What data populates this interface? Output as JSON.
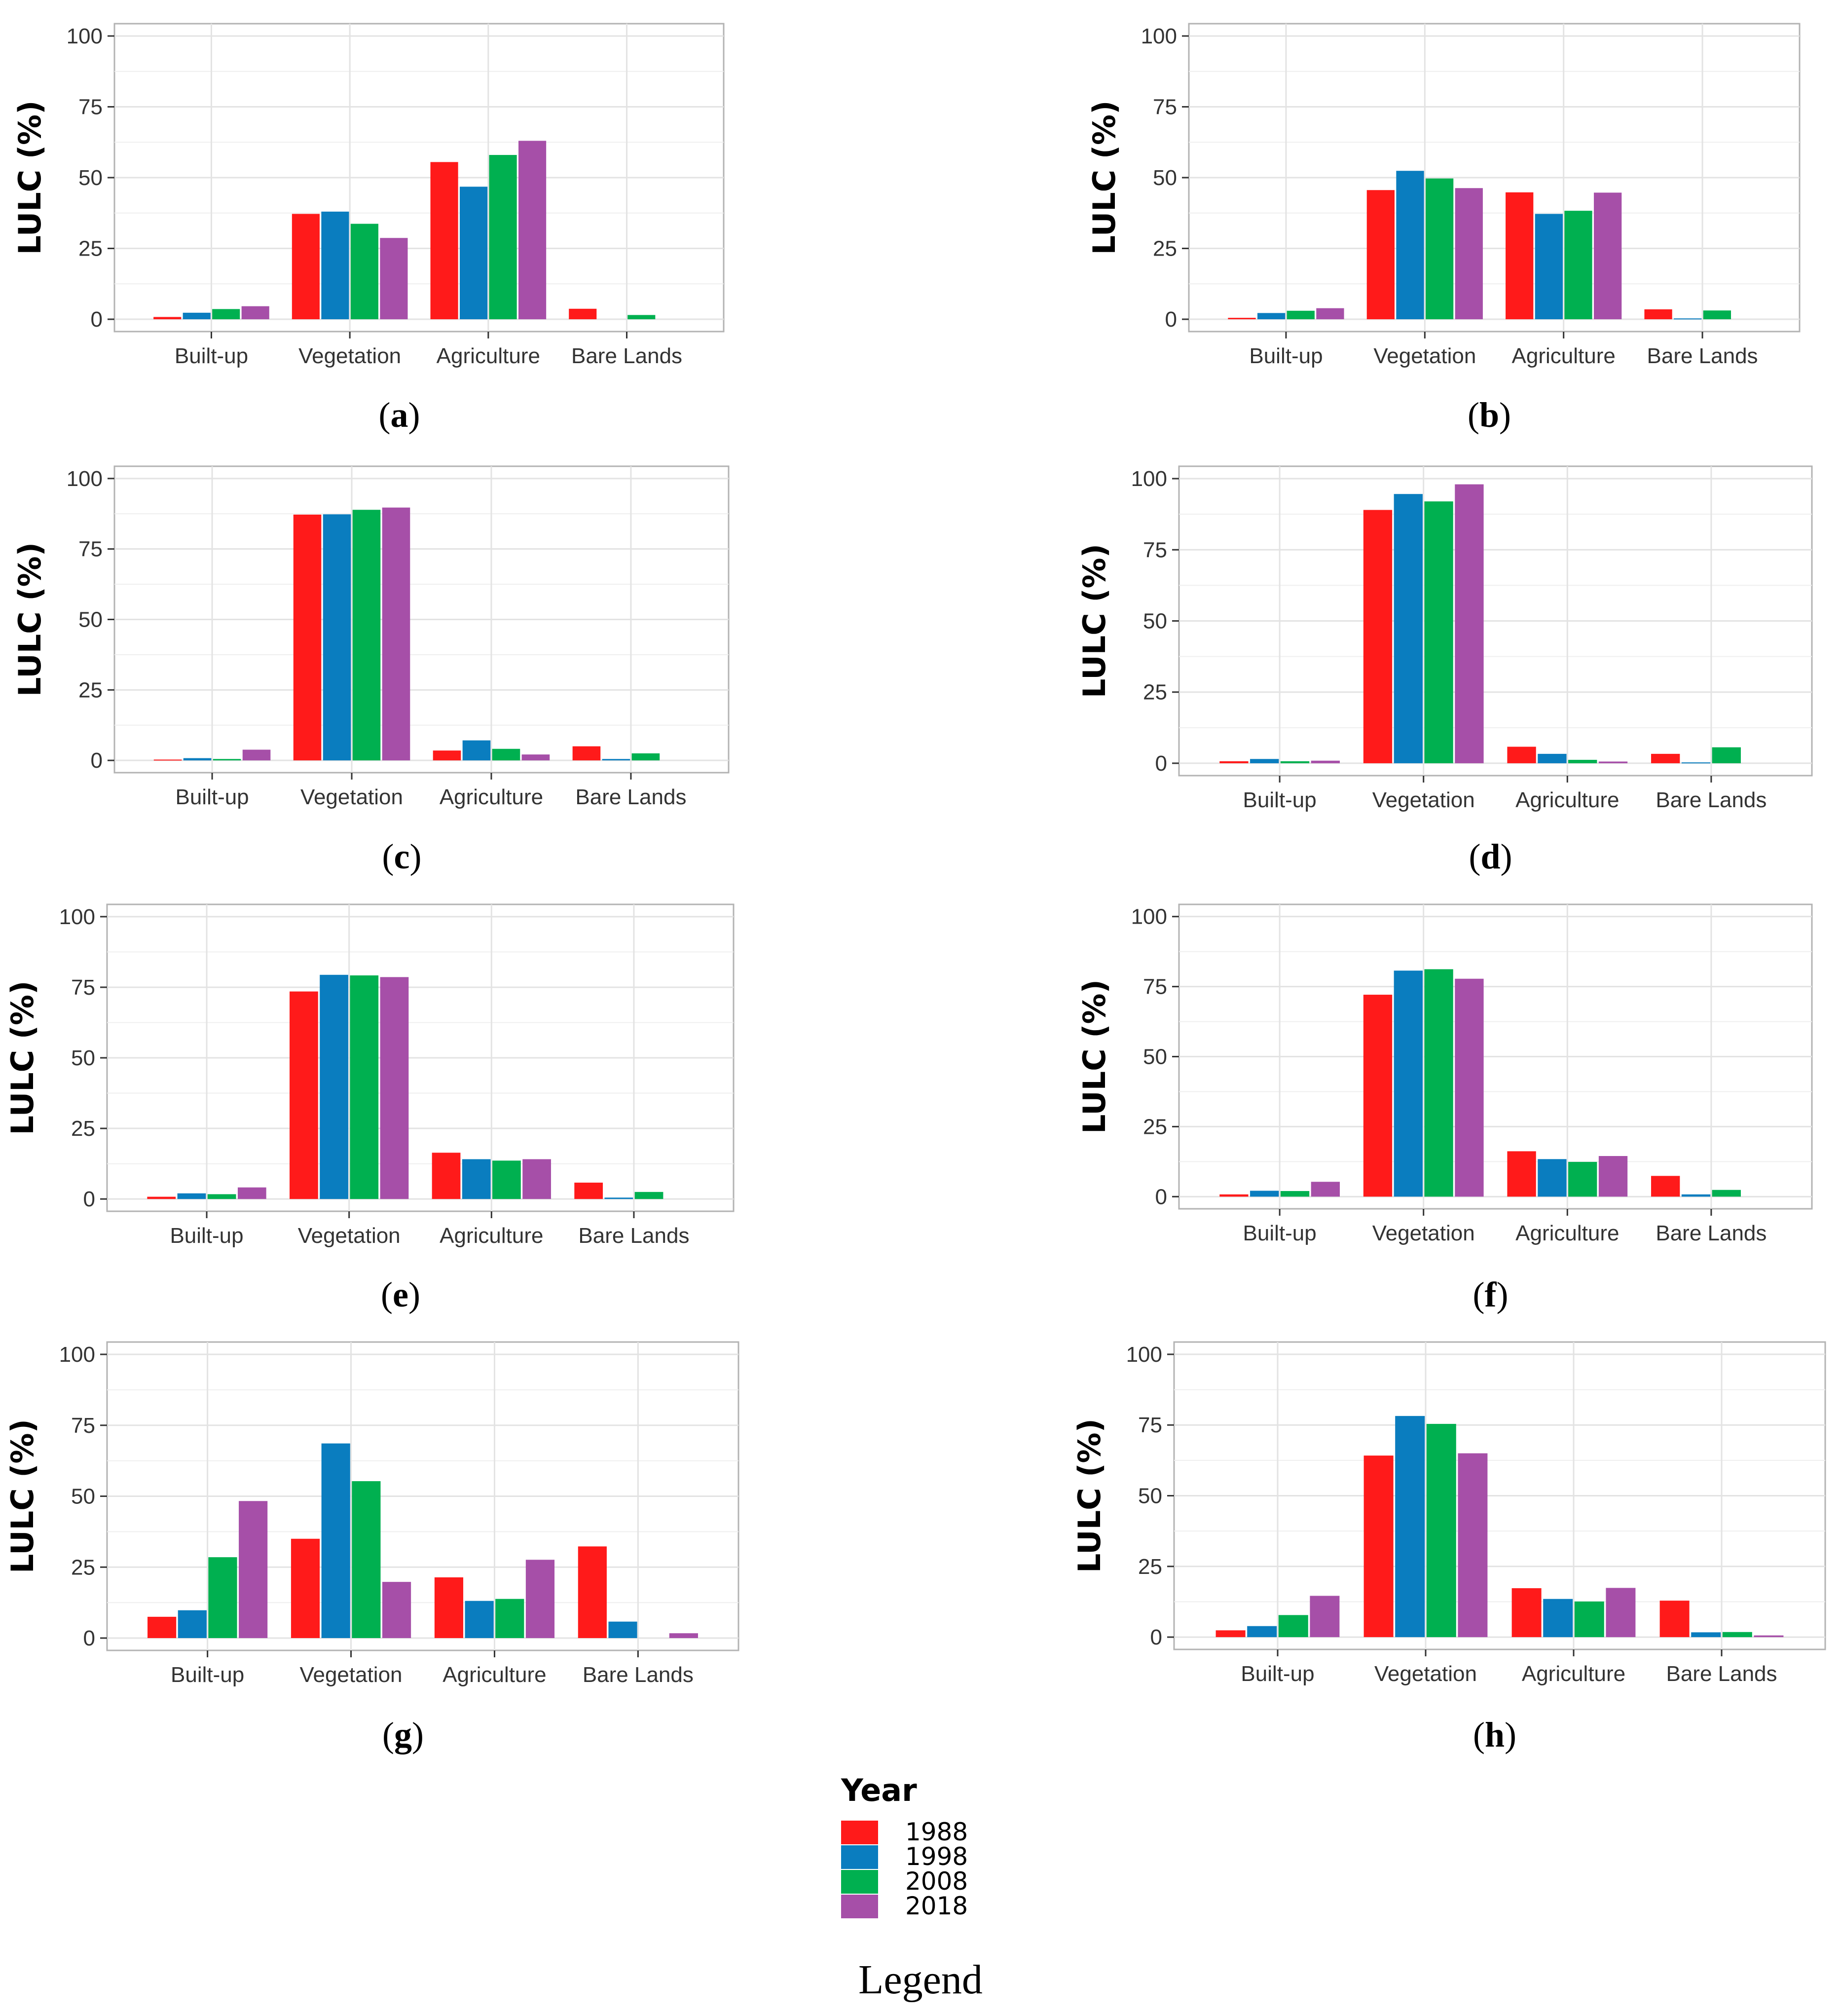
{
  "figure": {
    "legend": {
      "title": "Year",
      "caption": "Legend",
      "items": [
        {
          "label": "1988",
          "color": "#FF1A1A"
        },
        {
          "label": "1998",
          "color": "#0A7DBF"
        },
        {
          "label": "2008",
          "color": "#00B050"
        },
        {
          "label": "2018",
          "color": "#A64FA8"
        }
      ]
    }
  },
  "chart_data": [
    {
      "type": "bar",
      "panel": "a",
      "categories": [
        "Built-up",
        "Vegetation",
        "Agriculture",
        "Bare Lands"
      ],
      "ylabel": "LULC (%)",
      "ylim": [
        0,
        100
      ],
      "yticks": [
        0,
        25,
        50,
        75,
        100
      ],
      "series": [
        {
          "name": "1988",
          "values": [
            0.8,
            37.2,
            55.5,
            3.7
          ]
        },
        {
          "name": "1998",
          "values": [
            2.3,
            38.0,
            46.8,
            0
          ]
        },
        {
          "name": "2008",
          "values": [
            3.6,
            33.7,
            58.0,
            1.5
          ]
        },
        {
          "name": "2018",
          "values": [
            4.6,
            28.7,
            63.0,
            0
          ]
        }
      ]
    },
    {
      "type": "bar",
      "panel": "b",
      "categories": [
        "Built-up",
        "Vegetation",
        "Agriculture",
        "Bare Lands"
      ],
      "ylabel": "LULC (%)",
      "ylim": [
        0,
        100
      ],
      "yticks": [
        0,
        25,
        50,
        75,
        100
      ],
      "series": [
        {
          "name": "1988",
          "values": [
            0.5,
            45.6,
            44.8,
            3.5
          ]
        },
        {
          "name": "1998",
          "values": [
            2.2,
            52.4,
            37.2,
            0.3
          ]
        },
        {
          "name": "2008",
          "values": [
            3.0,
            49.7,
            38.3,
            3.1
          ]
        },
        {
          "name": "2018",
          "values": [
            3.9,
            46.3,
            44.7,
            0
          ]
        }
      ]
    },
    {
      "type": "bar",
      "panel": "c",
      "categories": [
        "Built-up",
        "Vegetation",
        "Agriculture",
        "Bare Lands"
      ],
      "ylabel": "LULC (%)",
      "ylim": [
        0,
        100
      ],
      "yticks": [
        0,
        25,
        50,
        75,
        100
      ],
      "series": [
        {
          "name": "1988",
          "values": [
            0.3,
            87.2,
            3.5,
            5.0
          ]
        },
        {
          "name": "1998",
          "values": [
            0.8,
            87.3,
            7.1,
            0.5
          ]
        },
        {
          "name": "2008",
          "values": [
            0.5,
            88.9,
            4.1,
            2.5
          ]
        },
        {
          "name": "2018",
          "values": [
            3.8,
            89.7,
            2.1,
            0
          ]
        }
      ]
    },
    {
      "type": "bar",
      "panel": "d",
      "categories": [
        "Built-up",
        "Vegetation",
        "Agriculture",
        "Bare Lands"
      ],
      "ylabel": "LULC (%)",
      "ylim": [
        0,
        100
      ],
      "yticks": [
        0,
        25,
        50,
        75,
        100
      ],
      "series": [
        {
          "name": "1988",
          "values": [
            0.7,
            89.0,
            5.8,
            3.3
          ]
        },
        {
          "name": "1998",
          "values": [
            1.5,
            94.6,
            3.3,
            0.3
          ]
        },
        {
          "name": "2008",
          "values": [
            0.7,
            92.0,
            1.2,
            5.6
          ]
        },
        {
          "name": "2018",
          "values": [
            0.9,
            98.0,
            0.6,
            0
          ]
        }
      ]
    },
    {
      "type": "bar",
      "panel": "e",
      "categories": [
        "Built-up",
        "Vegetation",
        "Agriculture",
        "Bare Lands"
      ],
      "ylabel": "LULC (%)",
      "ylim": [
        0,
        100
      ],
      "yticks": [
        0,
        25,
        50,
        75,
        100
      ],
      "series": [
        {
          "name": "1988",
          "values": [
            0.8,
            73.5,
            16.4,
            5.8
          ]
        },
        {
          "name": "1998",
          "values": [
            2.0,
            79.4,
            14.1,
            0.5
          ]
        },
        {
          "name": "2008",
          "values": [
            1.7,
            79.2,
            13.6,
            2.5
          ]
        },
        {
          "name": "2018",
          "values": [
            4.1,
            78.6,
            14.1,
            0
          ]
        }
      ]
    },
    {
      "type": "bar",
      "panel": "f",
      "categories": [
        "Built-up",
        "Vegetation",
        "Agriculture",
        "Bare Lands"
      ],
      "ylabel": "LULC (%)",
      "ylim": [
        0,
        100
      ],
      "yticks": [
        0,
        25,
        50,
        75,
        100
      ],
      "series": [
        {
          "name": "1988",
          "values": [
            0.8,
            72.1,
            16.2,
            7.4
          ]
        },
        {
          "name": "1998",
          "values": [
            2.1,
            80.7,
            13.4,
            0.8
          ]
        },
        {
          "name": "2008",
          "values": [
            2.0,
            81.2,
            12.4,
            2.4
          ]
        },
        {
          "name": "2018",
          "values": [
            5.3,
            77.8,
            14.5,
            0
          ]
        }
      ]
    },
    {
      "type": "bar",
      "panel": "g",
      "categories": [
        "Built-up",
        "Vegetation",
        "Agriculture",
        "Bare Lands"
      ],
      "ylabel": "LULC (%)",
      "ylim": [
        0,
        100
      ],
      "yticks": [
        0,
        25,
        50,
        75,
        100
      ],
      "series": [
        {
          "name": "1988",
          "values": [
            7.5,
            35.0,
            21.4,
            32.3
          ]
        },
        {
          "name": "1998",
          "values": [
            9.8,
            68.6,
            13.1,
            5.8
          ]
        },
        {
          "name": "2008",
          "values": [
            28.5,
            55.3,
            13.8,
            0
          ]
        },
        {
          "name": "2018",
          "values": [
            48.3,
            19.8,
            27.6,
            1.7
          ]
        }
      ]
    },
    {
      "type": "bar",
      "panel": "h",
      "categories": [
        "Built-up",
        "Vegetation",
        "Agriculture",
        "Bare Lands"
      ],
      "ylabel": "LULC (%)",
      "ylim": [
        0,
        100
      ],
      "yticks": [
        0,
        25,
        50,
        75,
        100
      ],
      "series": [
        {
          "name": "1988",
          "values": [
            2.4,
            64.2,
            17.3,
            12.9
          ]
        },
        {
          "name": "1998",
          "values": [
            3.9,
            78.2,
            13.5,
            1.7
          ]
        },
        {
          "name": "2008",
          "values": [
            7.8,
            75.4,
            12.6,
            1.8
          ]
        },
        {
          "name": "2018",
          "values": [
            14.6,
            65.0,
            17.4,
            0.6
          ]
        }
      ]
    }
  ]
}
